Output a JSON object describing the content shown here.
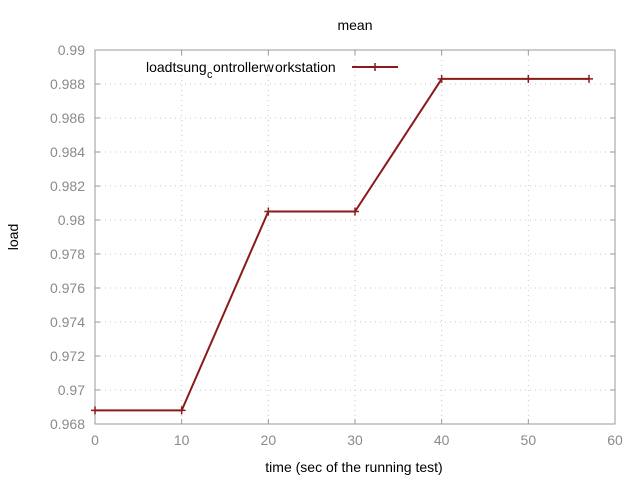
{
  "chart_data": {
    "type": "line",
    "title": "mean",
    "xlabel": "time (sec of the running test)",
    "ylabel": "load",
    "xlim": [
      0,
      60
    ],
    "ylim": [
      0.968,
      0.99
    ],
    "x_ticks": [
      "0",
      "10",
      "20",
      "30",
      "40",
      "50",
      "60"
    ],
    "y_ticks": [
      "0.968",
      "0.97",
      "0.972",
      "0.974",
      "0.976",
      "0.978",
      "0.98",
      "0.982",
      "0.984",
      "0.986",
      "0.988",
      "0.99"
    ],
    "grid": true,
    "legend_position": "top-left",
    "series": [
      {
        "name": "loadtsung_controller_workstation",
        "legend_parts": [
          "loadtsung",
          "c",
          "ontrollerw",
          "orkstation"
        ],
        "color": "#8b1a1a",
        "x": [
          0,
          10,
          20,
          30,
          40,
          50,
          57
        ],
        "y": [
          0.9688,
          0.9688,
          0.9805,
          0.9805,
          0.9883,
          0.9883,
          0.9883
        ]
      }
    ]
  }
}
